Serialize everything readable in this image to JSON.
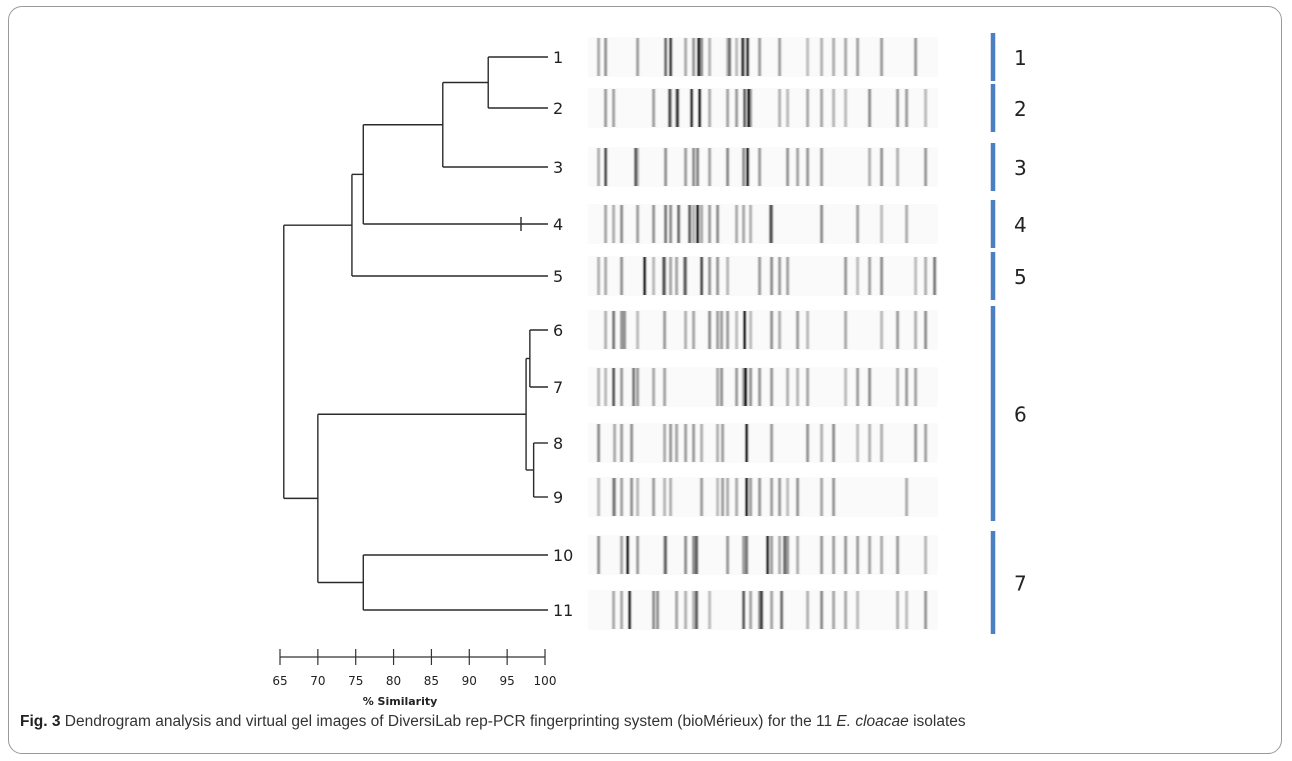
{
  "figure": {
    "leaf_labels": [
      "1",
      "2",
      "3",
      "4",
      "5",
      "6",
      "7",
      "8",
      "9",
      "10",
      "11"
    ],
    "cluster_labels": [
      "1",
      "2",
      "3",
      "4",
      "5",
      "6",
      "7"
    ],
    "clusters": [
      {
        "label": "1",
        "members": [
          1
        ]
      },
      {
        "label": "2",
        "members": [
          2
        ]
      },
      {
        "label": "3",
        "members": [
          3
        ]
      },
      {
        "label": "4",
        "members": [
          4
        ]
      },
      {
        "label": "5",
        "members": [
          5
        ]
      },
      {
        "label": "6",
        "members": [
          6,
          7,
          8,
          9
        ]
      },
      {
        "label": "7",
        "members": [
          10,
          11
        ]
      }
    ],
    "scale": {
      "ticks": [
        "65",
        "70",
        "75",
        "80",
        "85",
        "90",
        "95",
        "100"
      ],
      "title": "% Similarity"
    },
    "dendrogram_merges": [
      {
        "a": "1",
        "b": "2",
        "similarity": 92.5
      },
      {
        "a": "8",
        "b": "9",
        "similarity": 98.5
      },
      {
        "a": "6",
        "b": "7",
        "similarity": 98.0
      },
      {
        "a": "6-7",
        "b": "8-9",
        "similarity": 97.5
      },
      {
        "a": "10",
        "b": "11",
        "similarity": 76.0
      },
      {
        "a": "1-2",
        "b": "3",
        "similarity": 86.5
      },
      {
        "a": "1-3",
        "b": "4",
        "similarity": 76.0
      },
      {
        "a": "1-4",
        "b": "5",
        "similarity": 74.5
      },
      {
        "a": "6-9",
        "b": "10-11",
        "similarity": 70.0
      },
      {
        "a": "1-5",
        "b": "6-11",
        "similarity": 65.5
      }
    ],
    "colors": {
      "cluster_bar": "#4a7fc1",
      "tree": "#2a2a2a",
      "band": "#000000"
    }
  },
  "caption": {
    "label": "Fig. 3",
    "text_before": " Dendrogram analysis and virtual gel images of DiversiLab rep-PCR fingerprinting system (bioMérieux) for the 11 ",
    "species": "E. cloacae",
    "text_after": " isolates"
  }
}
